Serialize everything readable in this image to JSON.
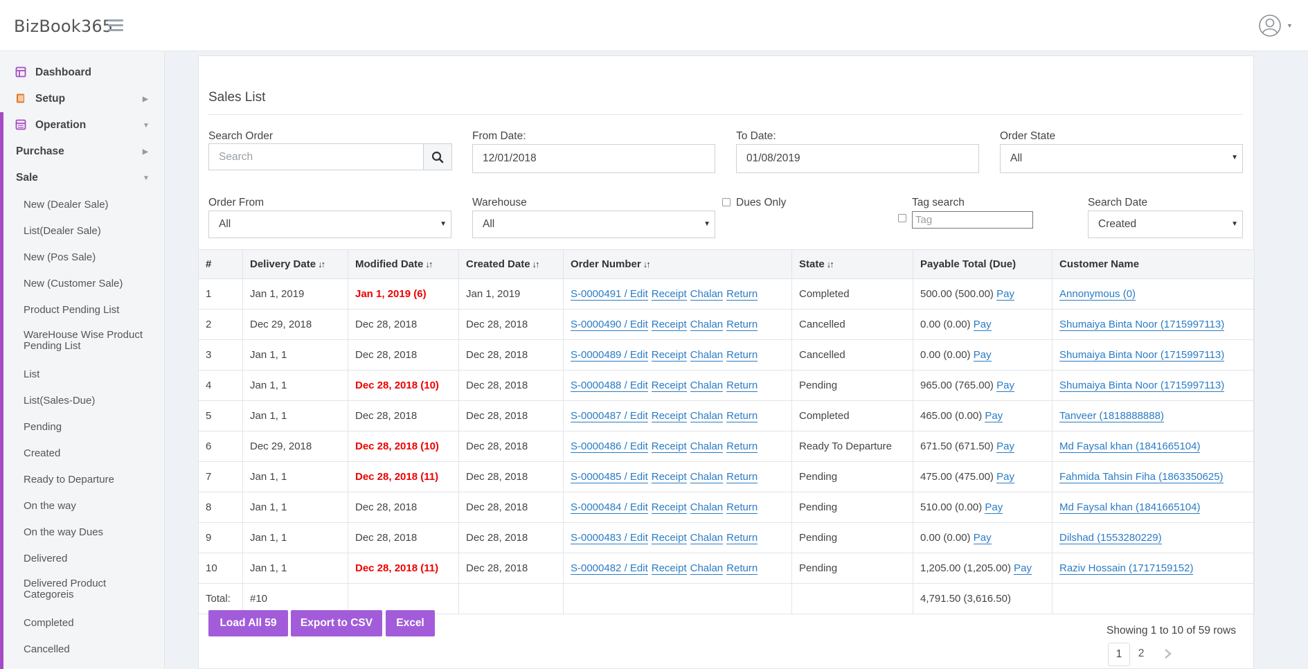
{
  "app": {
    "brand": "BizBook365"
  },
  "sidebar": {
    "top": [
      {
        "label": "Dashboard",
        "icon": "dashboard-icon"
      },
      {
        "label": "Setup",
        "icon": "book-icon"
      },
      {
        "label": "Operation",
        "icon": "list-icon"
      }
    ],
    "groups": [
      {
        "label": "Purchase"
      },
      {
        "label": "Sale"
      }
    ],
    "sale_items": [
      "New (Dealer Sale)",
      "List(Dealer Sale)",
      "New (Pos Sale)",
      "New (Customer Sale)",
      "Product Pending List",
      "WareHouse Wise Product Pending List",
      "List",
      "List(Sales-Due)",
      "Pending",
      "Created",
      "Ready to Departure",
      "On the way",
      "On the way Dues",
      "Delivered",
      "Delivered Product Categoreis",
      "Completed",
      "Cancelled"
    ]
  },
  "page": {
    "title": "Sales List"
  },
  "filters": {
    "search_order_label": "Search Order",
    "search_placeholder": "Search",
    "from_date_label": "From Date:",
    "from_date": "12/01/2018",
    "to_date_label": "To Date:",
    "to_date": "01/08/2019",
    "order_state_label": "Order State",
    "order_state": "All",
    "order_from_label": "Order From",
    "order_from": "All",
    "warehouse_label": "Warehouse",
    "warehouse": "All",
    "dues_only_label": "Dues Only",
    "tag_search_label": "Tag search",
    "tag_placeholder": "Tag",
    "search_date_label": "Search Date",
    "search_date": "Created"
  },
  "table": {
    "headers": [
      "#",
      "Delivery Date",
      "Modified Date",
      "Created Date",
      "Order Number",
      "State",
      "Payable Total (Due)",
      "Customer Name"
    ],
    "action_labels": {
      "edit": "Edit",
      "receipt": "Receipt",
      "chalan": "Chalan",
      "return": "Return",
      "pay": "Pay"
    },
    "rows": [
      {
        "n": "1",
        "delivery": "Jan 1, 2019",
        "modified": "Jan 1, 2019 (6)",
        "modified_alert": true,
        "created": "Jan 1, 2019",
        "order": "S-0000491",
        "state": "Completed",
        "payable": "500.00 (500.00)",
        "customer": "Annonymous (0)"
      },
      {
        "n": "2",
        "delivery": "Dec 29, 2018",
        "modified": "Dec 28, 2018",
        "modified_alert": false,
        "created": "Dec 28, 2018",
        "order": "S-0000490",
        "state": "Cancelled",
        "payable": "0.00 (0.00)",
        "customer": "Shumaiya Binta Noor (1715997113)"
      },
      {
        "n": "3",
        "delivery": "Jan 1, 1",
        "modified": "Dec 28, 2018",
        "modified_alert": false,
        "created": "Dec 28, 2018",
        "order": "S-0000489",
        "state": "Cancelled",
        "payable": "0.00 (0.00)",
        "customer": "Shumaiya Binta Noor (1715997113)"
      },
      {
        "n": "4",
        "delivery": "Jan 1, 1",
        "modified": "Dec 28, 2018 (10)",
        "modified_alert": true,
        "created": "Dec 28, 2018",
        "order": "S-0000488",
        "state": "Pending",
        "payable": "965.00 (765.00)",
        "customer": "Shumaiya Binta Noor (1715997113)"
      },
      {
        "n": "5",
        "delivery": "Jan 1, 1",
        "modified": "Dec 28, 2018",
        "modified_alert": false,
        "created": "Dec 28, 2018",
        "order": "S-0000487",
        "state": "Completed",
        "payable": "465.00 (0.00)",
        "customer": "Tanveer (1818888888)"
      },
      {
        "n": "6",
        "delivery": "Dec 29, 2018",
        "modified": "Dec 28, 2018 (10)",
        "modified_alert": true,
        "created": "Dec 28, 2018",
        "order": "S-0000486",
        "state": "Ready To Departure",
        "payable": "671.50 (671.50)",
        "customer": "Md Faysal khan (1841665104)"
      },
      {
        "n": "7",
        "delivery": "Jan 1, 1",
        "modified": "Dec 28, 2018 (11)",
        "modified_alert": true,
        "created": "Dec 28, 2018",
        "order": "S-0000485",
        "state": "Pending",
        "payable": "475.00 (475.00)",
        "customer": "Fahmida Tahsin Fiha (1863350625)"
      },
      {
        "n": "8",
        "delivery": "Jan 1, 1",
        "modified": "Dec 28, 2018",
        "modified_alert": false,
        "created": "Dec 28, 2018",
        "order": "S-0000484",
        "state": "Pending",
        "payable": "510.00 (0.00)",
        "customer": "Md Faysal khan (1841665104)"
      },
      {
        "n": "9",
        "delivery": "Jan 1, 1",
        "modified": "Dec 28, 2018",
        "modified_alert": false,
        "created": "Dec 28, 2018",
        "order": "S-0000483",
        "state": "Pending",
        "payable": "0.00 (0.00)",
        "customer": "Dilshad (1553280229)"
      },
      {
        "n": "10",
        "delivery": "Jan 1, 1",
        "modified": "Dec 28, 2018 (11)",
        "modified_alert": true,
        "created": "Dec 28, 2018",
        "order": "S-0000482",
        "state": "Pending",
        "payable": "1,205.00 (1,205.00)",
        "customer": "Raziv Hossain (1717159152)"
      }
    ],
    "total_label": "Total:",
    "total_count": "#10",
    "total_payable": "4,791.50 (3,616.50)"
  },
  "actions": {
    "load_all": "Load All 59",
    "export_csv": "Export to CSV",
    "excel": "Excel"
  },
  "pagination": {
    "showing": "Showing 1 to 10 of 59 rows",
    "pages": [
      "1",
      "2"
    ],
    "current": "1"
  },
  "colors": {
    "accent": "#a35cd9",
    "alert": "#ee0000",
    "link": "#2a7bc4"
  }
}
